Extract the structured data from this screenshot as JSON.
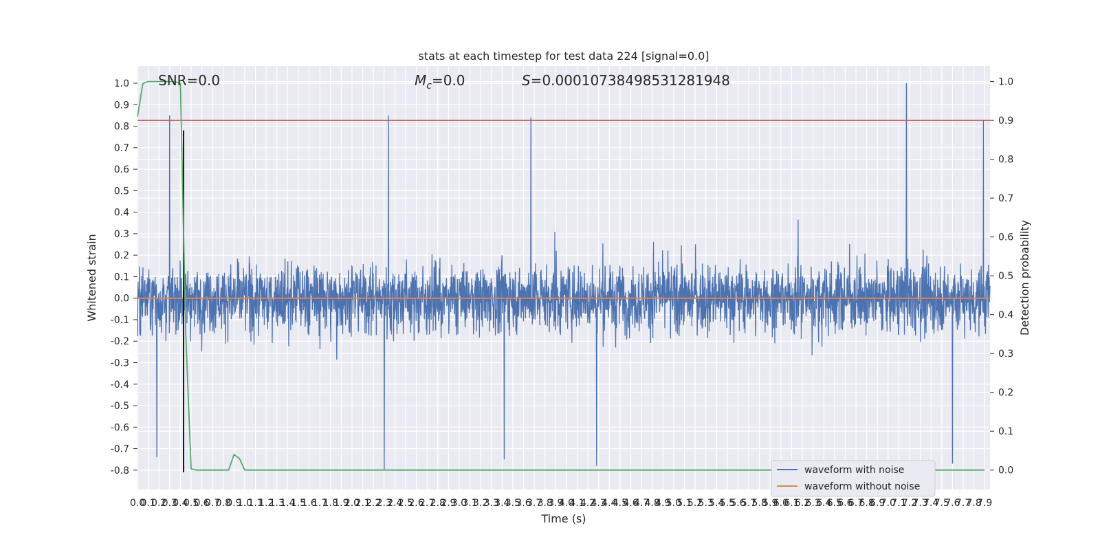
{
  "chart_data": {
    "type": "line",
    "title": "stats at each timestep for test data 224 [signal=0.0]",
    "xlabel": "Time (s)",
    "ylabel_left": "Whitened strain",
    "ylabel_right": "Detection probability",
    "xlim": [
      0.0,
      7.95
    ],
    "ylim_left": [
      -0.89,
      1.08
    ],
    "ylim_right": [
      -0.05,
      1.04
    ],
    "grid": true,
    "legend_position": "lower-right",
    "x_ticks": [
      "0.0",
      "0.1",
      "0.2",
      "0.3",
      "0.4",
      "0.5",
      "0.6",
      "0.7",
      "0.8",
      "0.9",
      "1.0",
      "1.1",
      "1.2",
      "1.3",
      "1.4",
      "1.5",
      "1.6",
      "1.7",
      "1.8",
      "1.9",
      "2.0",
      "2.1",
      "2.2",
      "2.3",
      "2.4",
      "2.5",
      "2.6",
      "2.7",
      "2.8",
      "2.9",
      "3.0",
      "3.1",
      "3.2",
      "3.3",
      "3.4",
      "3.5",
      "3.6",
      "3.7",
      "3.8",
      "3.9",
      "4.0",
      "4.1",
      "4.2",
      "4.3",
      "4.4",
      "4.5",
      "4.6",
      "4.7",
      "4.8",
      "4.9",
      "5.0",
      "5.1",
      "5.2",
      "5.3",
      "5.4",
      "5.5",
      "5.6",
      "5.7",
      "5.8",
      "5.9",
      "6.0",
      "6.1",
      "6.2",
      "6.3",
      "6.4",
      "6.5",
      "6.6",
      "6.7",
      "6.8",
      "6.9",
      "7.0",
      "7.1",
      "7.2",
      "7.3",
      "7.4",
      "7.5",
      "7.6",
      "7.7",
      "7.8",
      "7.9"
    ],
    "y_ticks_left": [
      "-0.8",
      "-0.7",
      "-0.6",
      "-0.5",
      "-0.4",
      "-0.3",
      "-0.2",
      "-0.1",
      "0.0",
      "0.1",
      "0.2",
      "0.3",
      "0.4",
      "0.5",
      "0.6",
      "0.7",
      "0.8",
      "0.9",
      "1.0"
    ],
    "y_ticks_right": [
      "0.0",
      "0.1",
      "0.2",
      "0.3",
      "0.4",
      "0.5",
      "0.6",
      "0.7",
      "0.8",
      "0.9",
      "1.0"
    ],
    "annotations": {
      "snr": "SNR=0.0",
      "mc_symbol": "M",
      "mc_subscript": "c",
      "mc_value": "=0.0",
      "s_symbol": "S",
      "s_value": "=0.00010738498531281948"
    },
    "series": [
      {
        "name": "waveform with noise",
        "color": "#4c72b0",
        "axis": "left",
        "note_points": "dense noise trace; notable peaks listed",
        "peaks": [
          {
            "x": 0.18,
            "y": 0.92
          },
          {
            "x": 0.3,
            "y": 0.85
          },
          {
            "x": 2.34,
            "y": 0.85
          },
          {
            "x": 3.67,
            "y": 0.84
          },
          {
            "x": 7.17,
            "y": 1.0
          },
          {
            "x": 7.89,
            "y": 0.83
          }
        ],
        "troughs": [
          {
            "x": 0.18,
            "y": -0.74
          },
          {
            "x": 2.3,
            "y": -0.8
          },
          {
            "x": 4.28,
            "y": -0.78
          },
          {
            "x": 7.6,
            "y": -0.77
          },
          {
            "x": 3.42,
            "y": -0.75
          }
        ]
      },
      {
        "name": "waveform without noise",
        "color": "#dd8452",
        "axis": "left",
        "x": [
          0.0,
          7.95
        ],
        "y": [
          0.0,
          0.0
        ]
      },
      {
        "name": "",
        "color": "#55a868",
        "axis": "right",
        "x": [
          0.0,
          0.05,
          0.1,
          0.15,
          0.2,
          0.25,
          0.3,
          0.35,
          0.4,
          0.45,
          0.5,
          0.55,
          0.6,
          0.65,
          0.7,
          0.75,
          0.8,
          0.85,
          0.9,
          0.95,
          1.0,
          1.05,
          1.1,
          7.9
        ],
        "y": [
          0.91,
          0.995,
          1.0,
          1.0,
          1.0,
          1.0,
          1.0,
          1.0,
          0.995,
          0.35,
          0.003,
          0.0,
          0.0,
          0.0,
          0.0,
          0.0,
          0.0,
          0.0,
          0.04,
          0.03,
          0.0,
          0.0,
          0.0,
          0.0
        ]
      }
    ],
    "threshold": {
      "axis": "right",
      "value": 0.9,
      "color": "#c44e52"
    },
    "vertical_marker": {
      "x": 0.43,
      "y_from": -0.81,
      "y_to": 0.78,
      "color": "#000000"
    }
  }
}
